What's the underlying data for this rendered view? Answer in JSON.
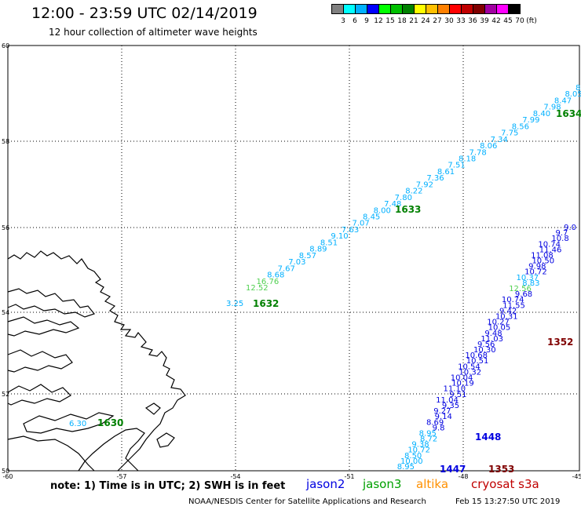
{
  "header": {
    "title": "12:00 - 23:59 UTC 02/14/2019",
    "subtitle": "12 hour collection of altimeter wave heights"
  },
  "color_scale": {
    "colors": [
      "#808080",
      "#00ffff",
      "#00b0ff",
      "#0000ff",
      "#00ff00",
      "#00c000",
      "#008000",
      "#ffff00",
      "#ffc000",
      "#ff8000",
      "#ff0000",
      "#c00000",
      "#800000",
      "#a000a0",
      "#ff00ff",
      "#000000"
    ],
    "labels": [
      "3",
      "6",
      "9",
      "12",
      "15",
      "18",
      "21",
      "24",
      "27",
      "30",
      "33",
      "36",
      "39",
      "42",
      "45",
      "70",
      "(ft)"
    ]
  },
  "axes": {
    "lon_labels": [
      "-60",
      "-57",
      "-54",
      "-51",
      "-48",
      "-45"
    ],
    "lat_labels": [
      "60",
      "58",
      "56",
      "54",
      "52",
      "50"
    ]
  },
  "tracks": {
    "jason3": {
      "color": "#00b0ff",
      "values": [
        "3.25",
        "12.52",
        "16.76",
        "8.68",
        "7.67",
        "7.03",
        "8.57",
        "8.89",
        "8.51",
        "9.10",
        "7.63",
        "7.07",
        "8.45",
        "8.00",
        "7.48",
        "7.80",
        "8.22",
        "7.92",
        "7.36",
        "8.61",
        "7.51",
        "8.18",
        "7.78",
        "8.06",
        "7.34",
        "7.75",
        "8.56",
        "7.99",
        "8.40",
        "7.98",
        "8.47",
        "8.05",
        "8."
      ],
      "times": [
        "1632",
        "1633",
        "1634"
      ]
    },
    "jason2": {
      "color": "#0000e0",
      "values": [
        "9.0",
        "9.7",
        "10.8",
        "10.74",
        "11.46",
        "11.08",
        "10.50",
        "9.98",
        "10.72",
        "10.37",
        "8.83",
        "12.56",
        "9.68",
        "10.74",
        "11.55",
        "9.42",
        "10.31",
        "10.27",
        "10.05",
        "9.48",
        "11.03",
        "9.56",
        "10.30",
        "10.68",
        "10.51",
        "10.54",
        "10.32",
        "10.04",
        "10.19",
        "11.10",
        "9.51",
        "11.04",
        "9.35",
        "9.27",
        "9.14",
        "8.69",
        "9.8",
        "8.95",
        "8.72",
        "9.38",
        "10.72",
        "8.50",
        "10.00",
        "8.95"
      ],
      "times": [
        "1448",
        "1447"
      ]
    },
    "cryosat": {
      "color": "#800000",
      "times": [
        "1352",
        "1353"
      ]
    },
    "coast_track": {
      "values": [
        "6.30"
      ],
      "times": [
        "1630"
      ]
    }
  },
  "legend": {
    "note": "note: 1) Time is in UTC; 2) SWH is in feet",
    "satellites": [
      {
        "name": "jason2",
        "color": "#0000e0"
      },
      {
        "name": "jason3",
        "color": "#00a000"
      },
      {
        "name": "altika",
        "color": "#ff9000"
      },
      {
        "name": "cryosat s3a",
        "color": "#c00000"
      }
    ]
  },
  "footer": {
    "credit": "NOAA/NESDIS Center for Satellite Applications and Research",
    "timestamp": "Feb 15 13:27:50 UTC 2019"
  }
}
